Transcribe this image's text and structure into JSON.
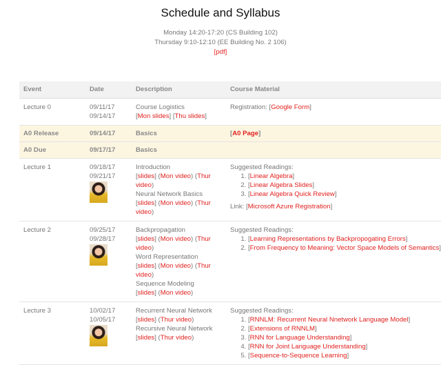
{
  "header": {
    "title": "Schedule and Syllabus",
    "lines": [
      "Monday 14:20-17:20 (CS Building 102)",
      "Thursday 9:10-12:10 (EE Building No. 2 106)"
    ],
    "pdf": "pdf"
  },
  "columns": [
    "Event",
    "Date",
    "Description",
    "Course Material"
  ],
  "colors": {
    "link": "#e0201e",
    "highlight": "#fcf6e1",
    "header_bg": "#f2f2f2"
  },
  "rows": [
    {
      "event": "Lecture 0",
      "dates": [
        "09/11/17",
        "09/14/17"
      ],
      "avatar": false,
      "desc": [
        {
          "title": "Course Logistics",
          "links": [
            {
              "label": "Mon slides",
              "wrap": "[]"
            },
            {
              "label": "Thu slides",
              "wrap": "[]"
            }
          ]
        }
      ],
      "material": {
        "prefix": "Registration: ",
        "link": "Google Form"
      }
    },
    {
      "event": "A0 Release",
      "dates": [
        "09/14/17"
      ],
      "highlight": true,
      "desc_text": "Basics",
      "material": {
        "link": "A0 Page"
      }
    },
    {
      "event": "A0 Due",
      "dates": [
        "09/17/17"
      ],
      "highlight": true,
      "desc_text": "Basics"
    },
    {
      "event": "Lecture 1",
      "dates": [
        "09/18/17",
        "09/21/17"
      ],
      "avatar": true,
      "desc": [
        {
          "title": "Introduction",
          "links": [
            {
              "label": "slides",
              "wrap": "[]"
            },
            {
              "label": "Mon video",
              "wrap": "()"
            },
            {
              "label": "Thur video",
              "wrap": "()"
            }
          ]
        },
        {
          "title": "Neural Network Basics",
          "links": [
            {
              "label": "slides",
              "wrap": "[]"
            },
            {
              "label": "Mon video",
              "wrap": "()"
            },
            {
              "label": "Thur video",
              "wrap": "()"
            }
          ]
        }
      ],
      "material": {
        "readings_label": "Suggested Readings:",
        "readings": [
          "Linear Algebra",
          "Linear Algebra Slides",
          "Linear Algebra Quick Review"
        ],
        "extra_prefix": "Link: ",
        "extra_link": "Microsoft Azure Registration"
      }
    },
    {
      "event": "Lecture 2",
      "dates": [
        "09/25/17",
        "09/28/17"
      ],
      "avatar": true,
      "desc": [
        {
          "title": "Backpropagation",
          "links": [
            {
              "label": "slides",
              "wrap": "[]"
            },
            {
              "label": "Mon video",
              "wrap": "()"
            },
            {
              "label": "Thur video",
              "wrap": "()"
            }
          ]
        },
        {
          "title": "Word Representation",
          "links": [
            {
              "label": "slides",
              "wrap": "[]"
            },
            {
              "label": "Mon video",
              "wrap": "()"
            },
            {
              "label": "Thur video",
              "wrap": "()"
            }
          ]
        },
        {
          "title": "Sequence Modeling",
          "links": [
            {
              "label": "slides",
              "wrap": "[]"
            },
            {
              "label": "Mon video",
              "wrap": "()"
            }
          ]
        }
      ],
      "material": {
        "readings_label": "Suggested Readings:",
        "readings": [
          "Learning Representations by Backpropogating Errors",
          "From Frequency to Meaning: Vector Space Models of Semantics"
        ]
      }
    },
    {
      "event": "Lecture 3",
      "dates": [
        "10/02/17",
        "10/05/17"
      ],
      "avatar": true,
      "desc": [
        {
          "title": "Recurrent Neural Network",
          "links": [
            {
              "label": "slides",
              "wrap": "[]"
            },
            {
              "label": "Thur video",
              "wrap": "()"
            }
          ]
        },
        {
          "title": "Recursive Neural Network",
          "links": [
            {
              "label": "slides",
              "wrap": "[]"
            },
            {
              "label": "Thur video",
              "wrap": "()"
            }
          ]
        }
      ],
      "material": {
        "readings_label": "Suggested Readings:",
        "readings": [
          "RNNLM: Recurrent Neural Nnetwork Language Model",
          "Extensions of RNNLM",
          "RNN for Language Understanding",
          "RNN for Joint Language Understanding",
          "Sequence-to-Sequence Learning"
        ]
      }
    }
  ]
}
